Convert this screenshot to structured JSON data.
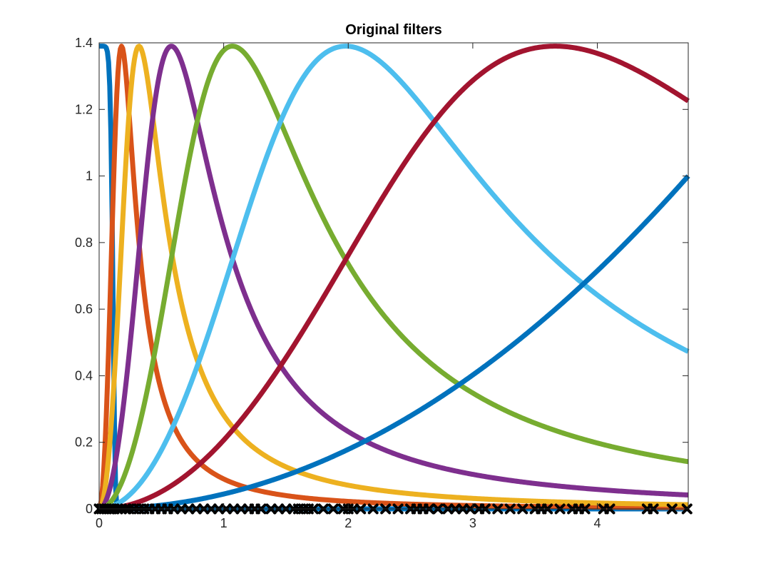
{
  "chart_data": {
    "type": "line",
    "title": "Original filters",
    "xlabel": "",
    "ylabel": "",
    "xlim": [
      0,
      4.73
    ],
    "ylim": [
      0,
      1.4
    ],
    "x_ticks": [
      0,
      1,
      2,
      3,
      4
    ],
    "y_ticks": [
      0,
      0.2,
      0.4,
      0.6,
      0.8,
      1,
      1.2,
      1.4
    ],
    "x_tick_labels": [
      "0",
      "1",
      "2",
      "3",
      "4"
    ],
    "y_tick_labels": [
      "0",
      "0.2",
      "0.4",
      "0.6",
      "0.8",
      "1",
      "1.2",
      "1.4"
    ],
    "grid": false,
    "legend": "none",
    "filter_shape": {
      "peak_value": 1.39,
      "note_values": "band-pass series y = peak * 2(x/c)^2 / (1 + (x/c)^4) with center c; scaling series y = peak * exp(-(x/w)^8); high-pass series y = x^2 / xlim_max^2"
    },
    "series": [
      {
        "kind": "scaling",
        "width": 0.115,
        "color": "#0072BD"
      },
      {
        "kind": "bandpass",
        "center": 0.18,
        "color": "#D95319"
      },
      {
        "kind": "bandpass",
        "center": 0.32,
        "color": "#EDB120"
      },
      {
        "kind": "bandpass",
        "center": 0.58,
        "color": "#7E2F8E"
      },
      {
        "kind": "bandpass",
        "center": 1.07,
        "color": "#77AC30"
      },
      {
        "kind": "bandpass",
        "center": 1.98,
        "color": "#4DBEEE"
      },
      {
        "kind": "bandpass",
        "center": 3.66,
        "color": "#A2142F"
      },
      {
        "kind": "highpass",
        "color": "#0072BD"
      }
    ],
    "eigenvalue_markers": {
      "marker": "x",
      "color": "#000000",
      "y": 0,
      "x": [
        0.0,
        0.02,
        0.04,
        0.06,
        0.08,
        0.1,
        0.12,
        0.15,
        0.18,
        0.21,
        0.24,
        0.28,
        0.32,
        0.36,
        0.4,
        0.45,
        0.5,
        0.55,
        0.6,
        0.66,
        0.72,
        0.78,
        0.84,
        0.9,
        0.96,
        1.02,
        1.08,
        1.14,
        1.2,
        1.25,
        1.3,
        1.38,
        1.44,
        1.5,
        1.56,
        1.6,
        1.64,
        1.68,
        1.72,
        1.8,
        1.88,
        1.96,
        2.0,
        2.04,
        2.1,
        2.2,
        2.3,
        2.4,
        2.5,
        2.55,
        2.6,
        2.65,
        2.72,
        2.8,
        2.86,
        2.92,
        2.98,
        3.05,
        3.1,
        3.2,
        3.3,
        3.4,
        3.5,
        3.55,
        3.6,
        3.7,
        3.8,
        3.85,
        3.9,
        4.05,
        4.1,
        4.4,
        4.45,
        4.6,
        4.72
      ]
    }
  }
}
